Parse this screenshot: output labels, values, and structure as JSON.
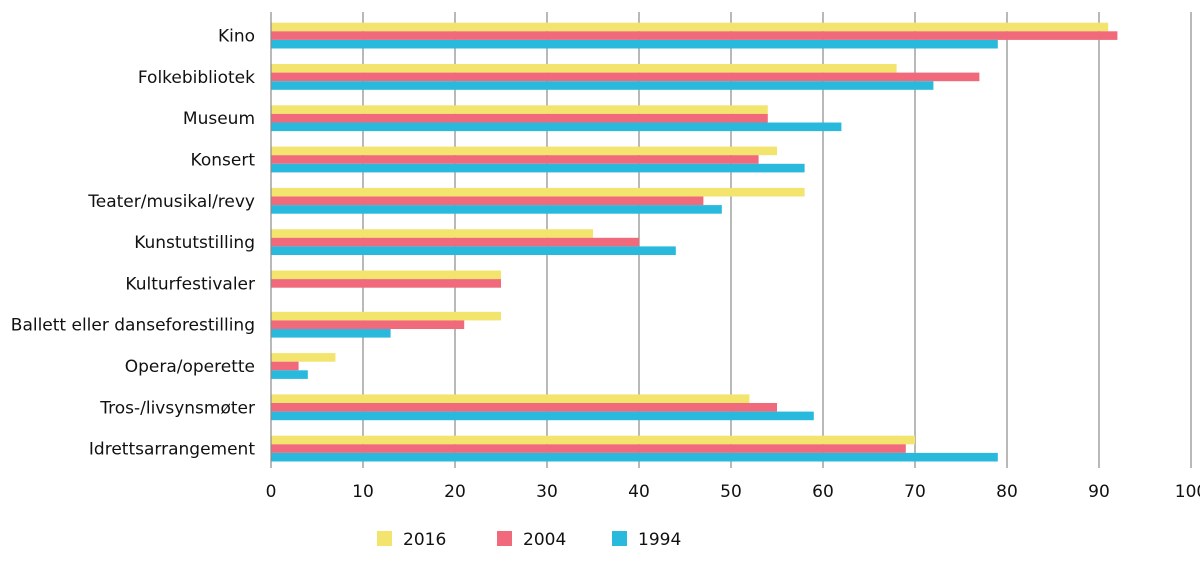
{
  "chart_data": {
    "type": "bar",
    "orientation": "horizontal",
    "title": "",
    "xlabel": "",
    "ylabel": "",
    "xlim": [
      0,
      100
    ],
    "x_ticks": [
      "0",
      "10",
      "20",
      "30",
      "40",
      "50",
      "60",
      "70",
      "80",
      "90",
      "100"
    ],
    "x_tick_values": [
      0,
      10,
      20,
      30,
      40,
      50,
      60,
      70,
      80,
      90,
      100
    ],
    "grid": true,
    "legend_position": "bottom",
    "categories": [
      "Kino",
      "Folkebibliotek",
      "Museum",
      "Konsert",
      "Teater/musikal/revy",
      "Kunstutstilling",
      "Kulturfestivaler",
      "Ballett eller danseforestilling",
      "Opera/operette",
      "Tros-/livsynsmøter",
      "Idrettsarrangement"
    ],
    "series": [
      {
        "name": "2016",
        "color": "#f2e46c",
        "values": [
          91,
          68,
          54,
          55,
          58,
          35,
          25,
          25,
          7,
          52,
          70
        ]
      },
      {
        "name": "2004",
        "color": "#f06a7c",
        "values": [
          92,
          77,
          54,
          53,
          47,
          40,
          25,
          21,
          3,
          55,
          69
        ]
      },
      {
        "name": "1994",
        "color": "#28b9dd",
        "values": [
          79,
          72,
          62,
          58,
          49,
          44,
          null,
          13,
          4,
          59,
          79
        ]
      }
    ]
  }
}
